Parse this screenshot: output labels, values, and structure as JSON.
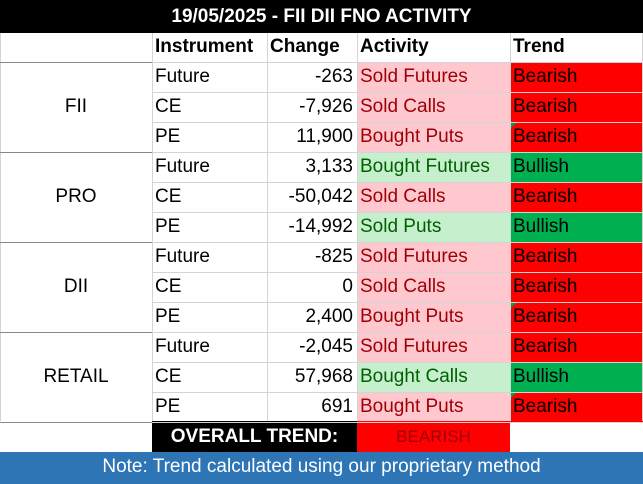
{
  "title": "19/05/2025 - FII DII FNO ACTIVITY",
  "headers": {
    "instrument": "Instrument",
    "change": "Change",
    "activity": "Activity",
    "trend": "Trend"
  },
  "groups": [
    {
      "name": "FII",
      "rows": [
        {
          "instrument": "Future",
          "change": "-263",
          "activity": "Sold Futures",
          "trend": "Bearish"
        },
        {
          "instrument": "CE",
          "change": "-7,926",
          "activity": "Sold Calls",
          "trend": "Bearish"
        },
        {
          "instrument": "PE",
          "change": "11,900",
          "activity": "Bought Puts",
          "trend": "Bearish"
        }
      ]
    },
    {
      "name": "PRO",
      "rows": [
        {
          "instrument": "Future",
          "change": "3,133",
          "activity": "Bought Futures",
          "trend": "Bullish"
        },
        {
          "instrument": "CE",
          "change": "-50,042",
          "activity": "Sold Calls",
          "trend": "Bearish"
        },
        {
          "instrument": "PE",
          "change": "-14,992",
          "activity": "Sold Puts",
          "trend": "Bullish"
        }
      ]
    },
    {
      "name": "DII",
      "rows": [
        {
          "instrument": "Future",
          "change": "-825",
          "activity": "Sold Futures",
          "trend": "Bearish"
        },
        {
          "instrument": "CE",
          "change": "0",
          "activity": "Sold Calls",
          "trend": "Bearish"
        },
        {
          "instrument": "PE",
          "change": "2,400",
          "activity": "Bought Puts",
          "trend": "Bearish"
        }
      ]
    },
    {
      "name": "RETAIL",
      "rows": [
        {
          "instrument": "Future",
          "change": "-2,045",
          "activity": "Sold Futures",
          "trend": "Bearish"
        },
        {
          "instrument": "CE",
          "change": "57,968",
          "activity": "Bought Calls",
          "trend": "Bullish"
        },
        {
          "instrument": "PE",
          "change": "691",
          "activity": "Bought Puts",
          "trend": "Bearish"
        }
      ]
    }
  ],
  "overall": {
    "label": "OVERALL TREND:",
    "value": "BEARISH"
  },
  "note": "Note: Trend calculated using our proprietary method",
  "colors": {
    "bearish_activity_bg": "#ffc7ce",
    "bearish_activity_text": "#9c0006",
    "bullish_activity_bg": "#c6efce",
    "bullish_activity_text": "#006100",
    "bearish_trend": "#ff0000",
    "bullish_trend": "#00b050",
    "note_bg": "#2e75b6",
    "title_bg": "#000000"
  }
}
